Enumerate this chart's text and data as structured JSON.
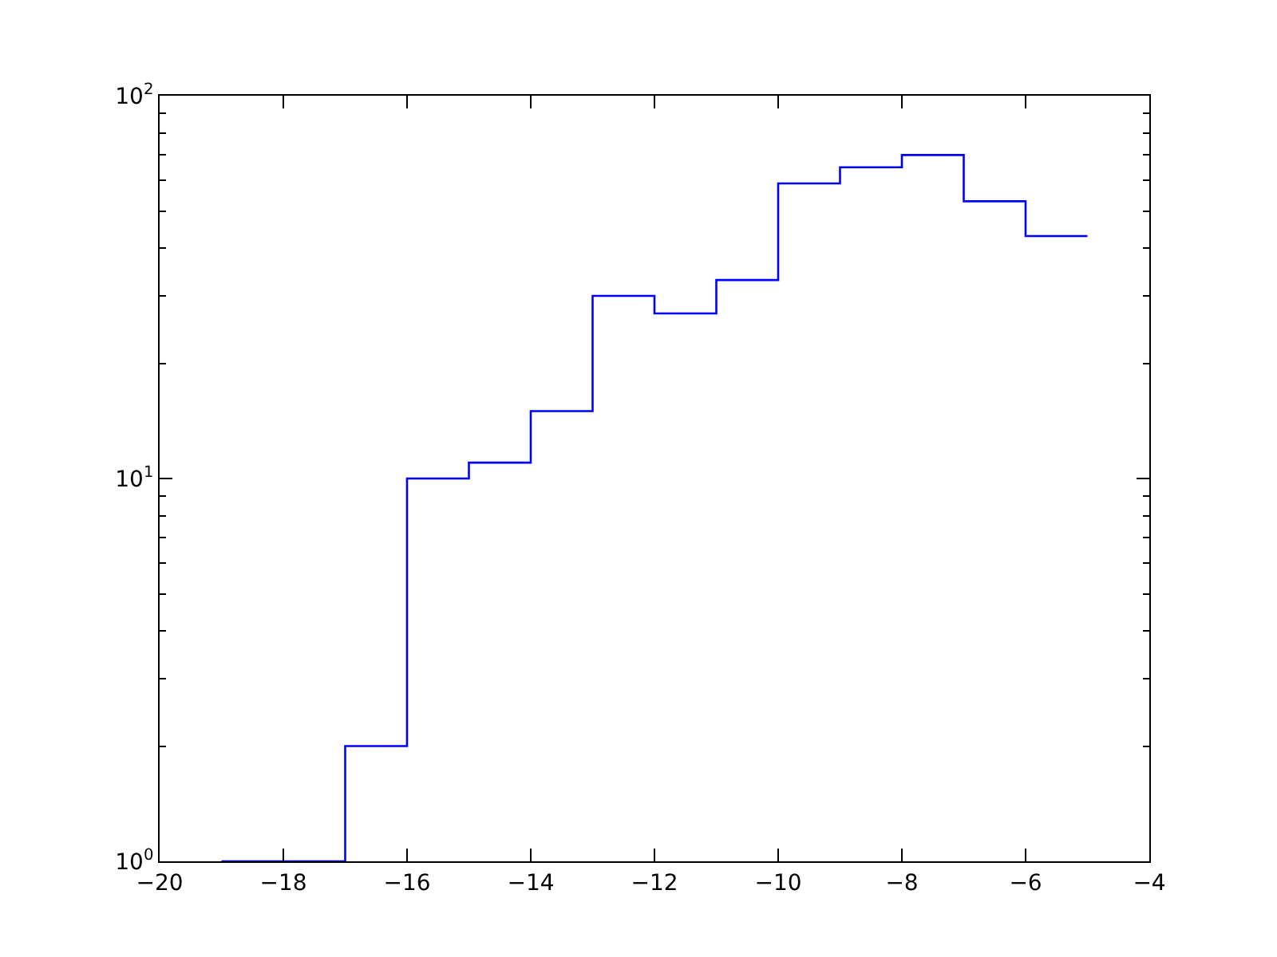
{
  "chart_data": {
    "type": "histogram",
    "color": "#0000ff",
    "log": true,
    "grid": false,
    "legend": false,
    "bins": [
      -19,
      -18,
      -17,
      -16,
      -15,
      -14,
      -13,
      -12,
      -11,
      -10,
      -9,
      -8,
      -7,
      -6,
      -5
    ],
    "values": [
      1,
      1,
      2,
      10,
      11,
      15,
      30,
      27,
      33,
      59,
      65,
      70,
      53,
      43
    ],
    "xlim": [
      -20,
      -4
    ],
    "xticks": [
      {
        "value": -20,
        "label": "−20"
      },
      {
        "value": -18,
        "label": "−18"
      },
      {
        "value": -16,
        "label": "−16"
      },
      {
        "value": -14,
        "label": "−14"
      },
      {
        "value": -12,
        "label": "−12"
      },
      {
        "value": -10,
        "label": "−10"
      },
      {
        "value": -8,
        "label": "−8"
      },
      {
        "value": -6,
        "label": "−6"
      },
      {
        "value": -4,
        "label": "−4"
      }
    ],
    "ylim": [
      1,
      100
    ],
    "yticks": [
      {
        "value": 1,
        "label": "10$^{0}$"
      },
      {
        "value": 10,
        "label": "10$^{1}$"
      },
      {
        "value": 100,
        "label": "10$^{2}$"
      }
    ]
  }
}
